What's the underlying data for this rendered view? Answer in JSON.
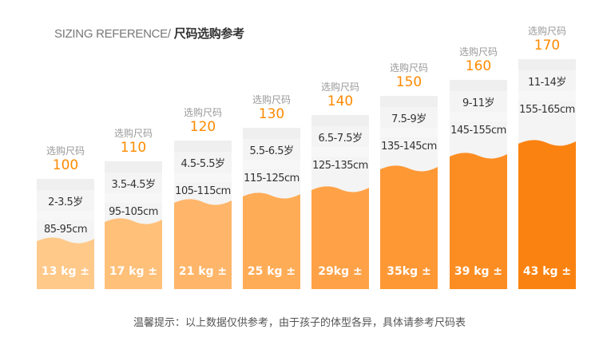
{
  "header": {
    "title_en": "SIZING REFERENCE/",
    "title_cn": "尺码选购参考"
  },
  "size_label": "选购尺码",
  "sizes": [
    {
      "size": "100",
      "age": "2-3.5岁",
      "height": "85-95cm",
      "weight": "13 kg ±",
      "color": "#ffc98a"
    },
    {
      "size": "110",
      "age": "3.5-4.5岁",
      "height": "95-105cm",
      "weight": "17 kg ±",
      "color": "#ffc07a"
    },
    {
      "size": "120",
      "age": "4.5-5.5岁",
      "height": "105-115cm",
      "weight": "21 kg ±",
      "color": "#ffb66a"
    },
    {
      "size": "130",
      "age": "5.5-6.5岁",
      "height": "115-125cm",
      "weight": "25 kg ±",
      "color": "#ffac57"
    },
    {
      "size": "140",
      "age": "6.5-7.5岁",
      "height": "125-135cm",
      "weight": "29kg ±",
      "color": "#ffa247"
    },
    {
      "size": "150",
      "age": "7.5-9岁",
      "height": "135-145cm",
      "weight": "35kg ±",
      "color": "#fe9835"
    },
    {
      "size": "160",
      "age": "9-11岁",
      "height": "145-155cm",
      "weight": "39 kg ±",
      "color": "#fc8d22"
    },
    {
      "size": "170",
      "age": "11-14岁",
      "height": "155-165cm",
      "weight": "43 kg ±",
      "color": "#fa8210"
    }
  ],
  "footer_note": "温馨提示：以上数据仅供参考，由于孩子的体型各异，具体请参考尺码表"
}
